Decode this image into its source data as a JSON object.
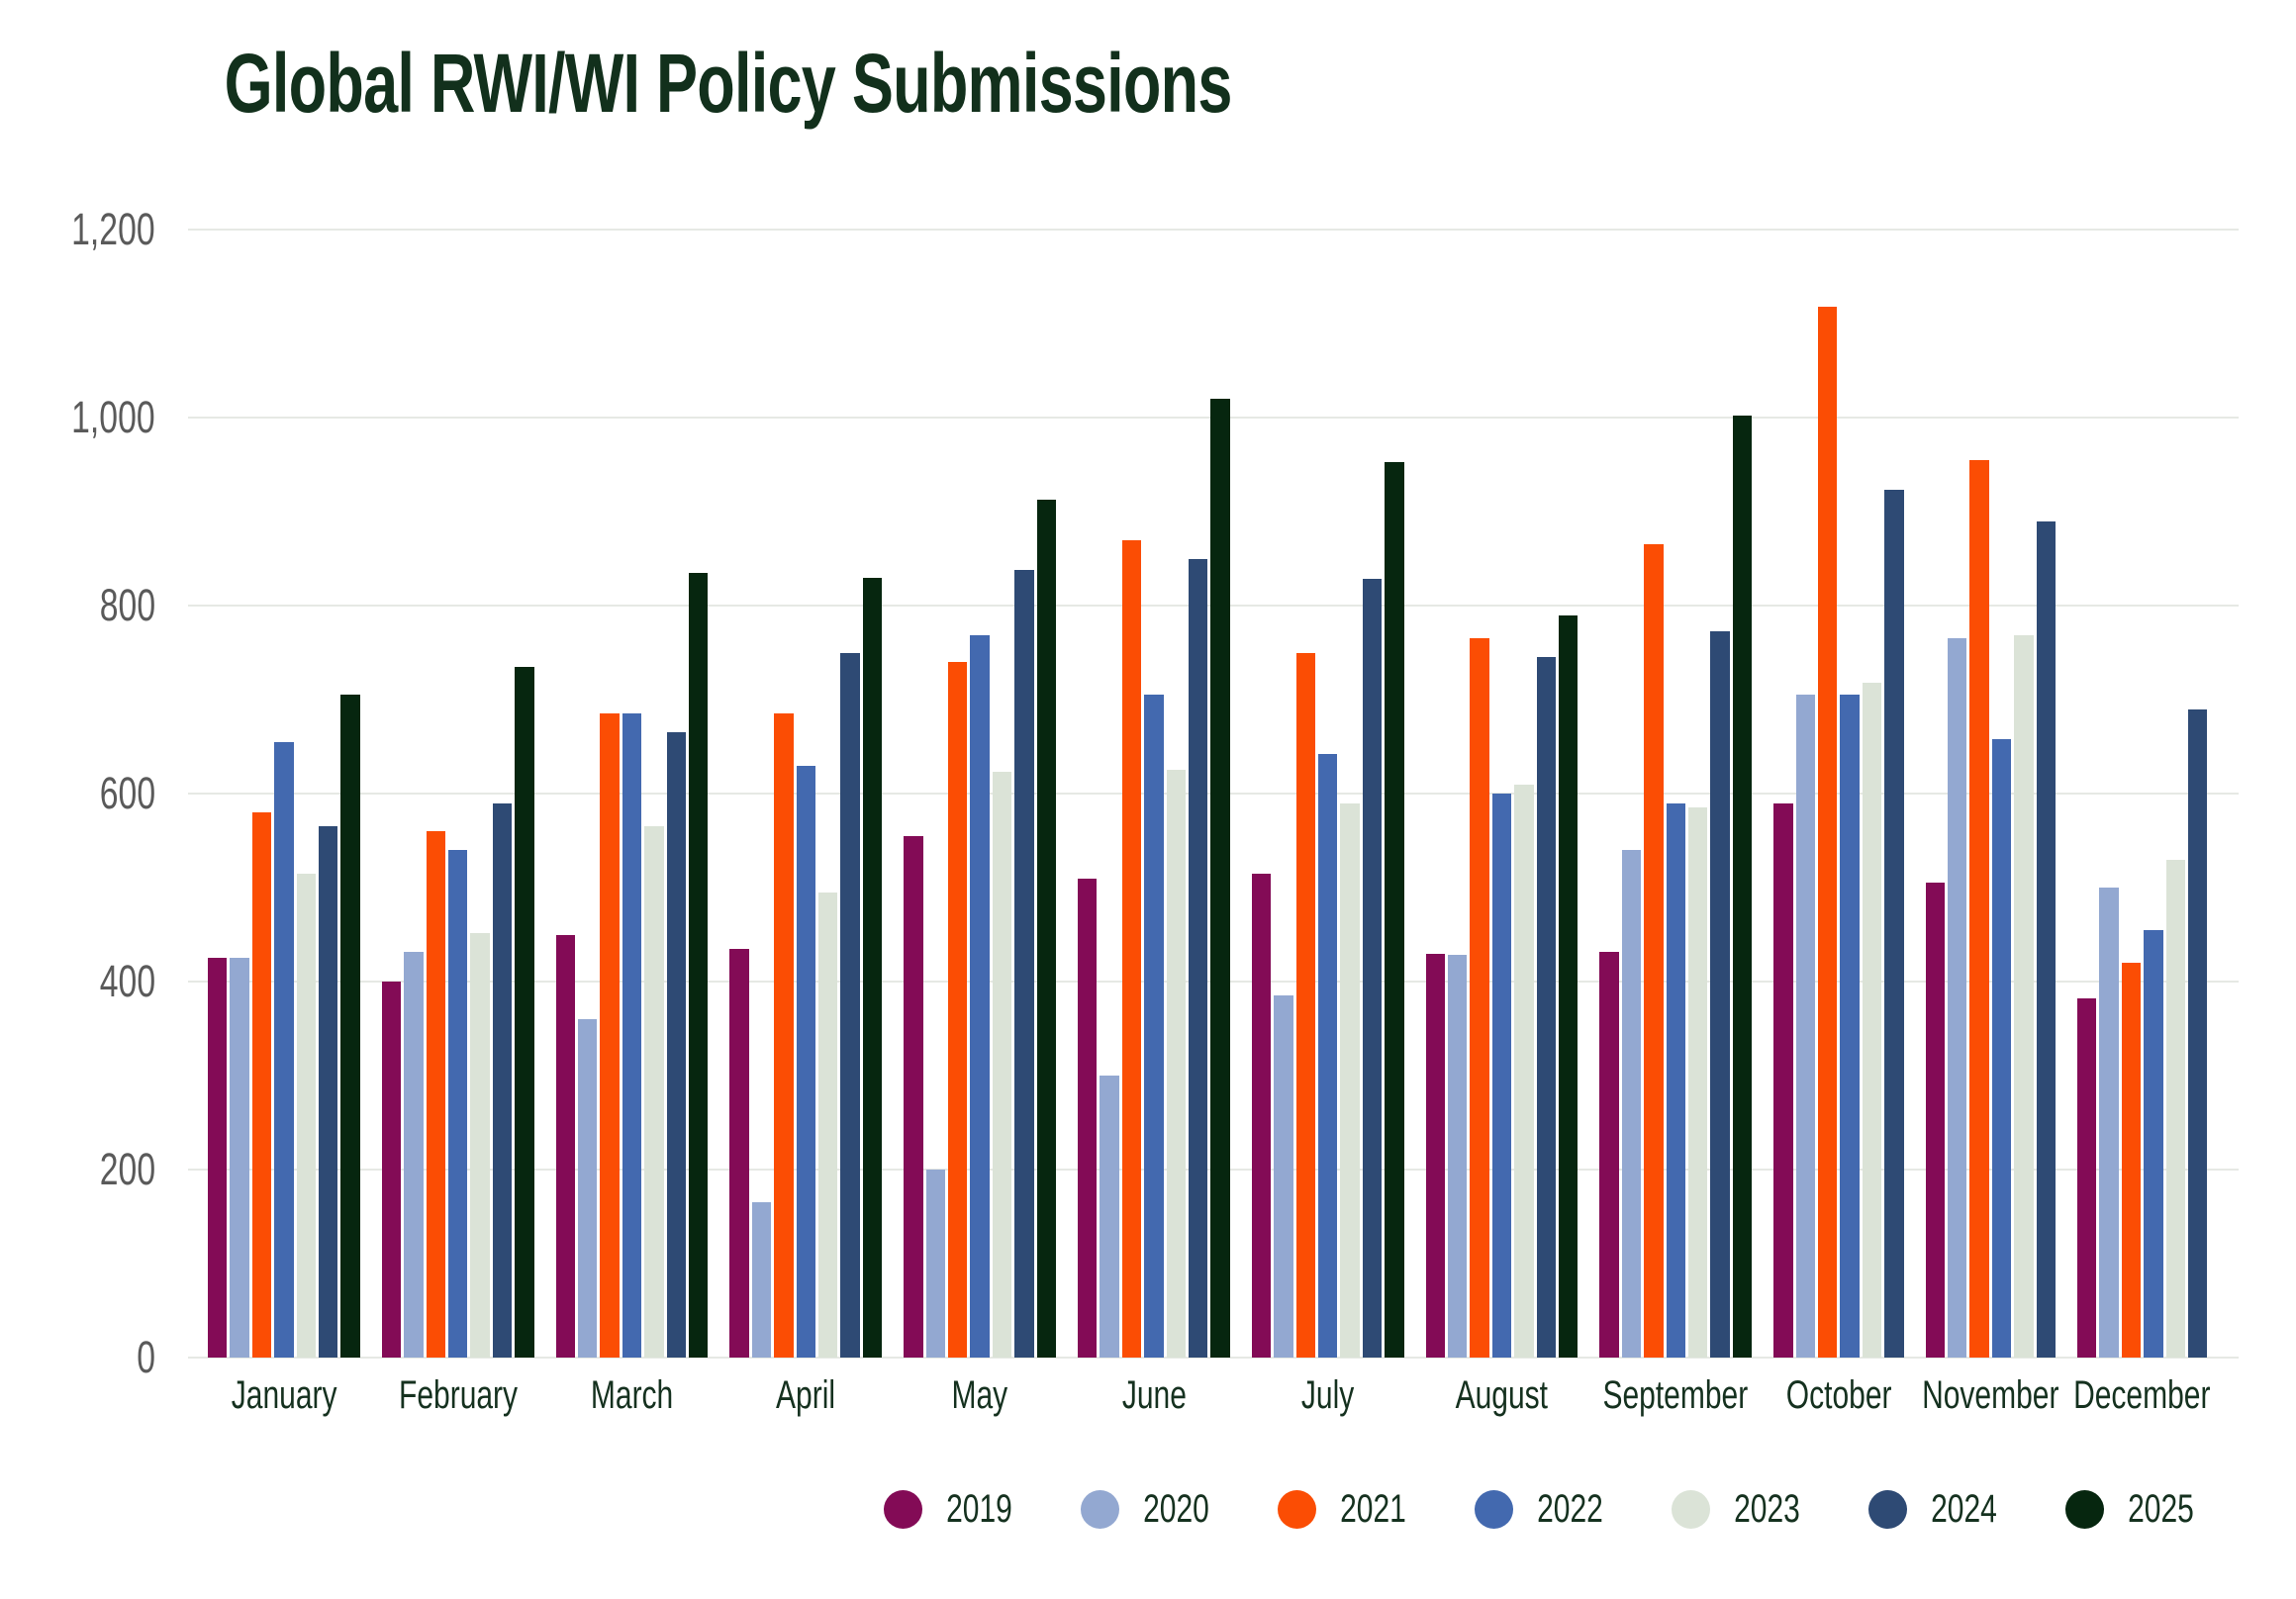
{
  "title": "Global RWI/WI Policy Submissions",
  "colors": {
    "title_text": "#12301C",
    "axis_value_text": "#5A5A5A",
    "category_text": "#15311F",
    "legend_text": "#15311F",
    "gridline": "#E6E9E4",
    "background": "#FFFFFF"
  },
  "chart_data": {
    "type": "bar",
    "title": "Global RWI/WI Policy Submissions",
    "xlabel": "",
    "ylabel": "",
    "grid": true,
    "legend_position": "bottom-right",
    "ylim": [
      0,
      1200
    ],
    "yticks": [
      0,
      200,
      400,
      600,
      800,
      1000,
      1200
    ],
    "ytick_labels": [
      "0",
      "200",
      "400",
      "600",
      "800",
      "1,000",
      "1,200"
    ],
    "categories": [
      "January",
      "February",
      "March",
      "April",
      "May",
      "June",
      "July",
      "August",
      "September",
      "October",
      "November",
      "December"
    ],
    "series": [
      {
        "name": "2019",
        "color": "#830B56",
        "values": [
          425,
          400,
          450,
          435,
          555,
          510,
          515,
          430,
          432,
          590,
          505,
          382
        ]
      },
      {
        "name": "2020",
        "color": "#93A8D1",
        "values": [
          425,
          432,
          360,
          165,
          200,
          300,
          385,
          428,
          540,
          705,
          765,
          500
        ]
      },
      {
        "name": "2021",
        "color": "#FB4D04",
        "values": [
          580,
          560,
          685,
          685,
          740,
          870,
          750,
          765,
          865,
          1118,
          955,
          420
        ]
      },
      {
        "name": "2022",
        "color": "#4369AF",
        "values": [
          655,
          540,
          685,
          630,
          768,
          705,
          642,
          600,
          590,
          705,
          658,
          455
        ]
      },
      {
        "name": "2023",
        "color": "#DBE3D7",
        "values": [
          515,
          452,
          565,
          495,
          623,
          625,
          590,
          610,
          585,
          718,
          768,
          530
        ]
      },
      {
        "name": "2024",
        "color": "#2E4A74",
        "values": [
          565,
          590,
          665,
          750,
          838,
          850,
          828,
          745,
          773,
          923,
          890,
          690
        ]
      },
      {
        "name": "2025",
        "color": "#06260F",
        "values": [
          705,
          735,
          835,
          830,
          913,
          1020,
          953,
          790,
          1002,
          null,
          null,
          null
        ]
      }
    ]
  }
}
